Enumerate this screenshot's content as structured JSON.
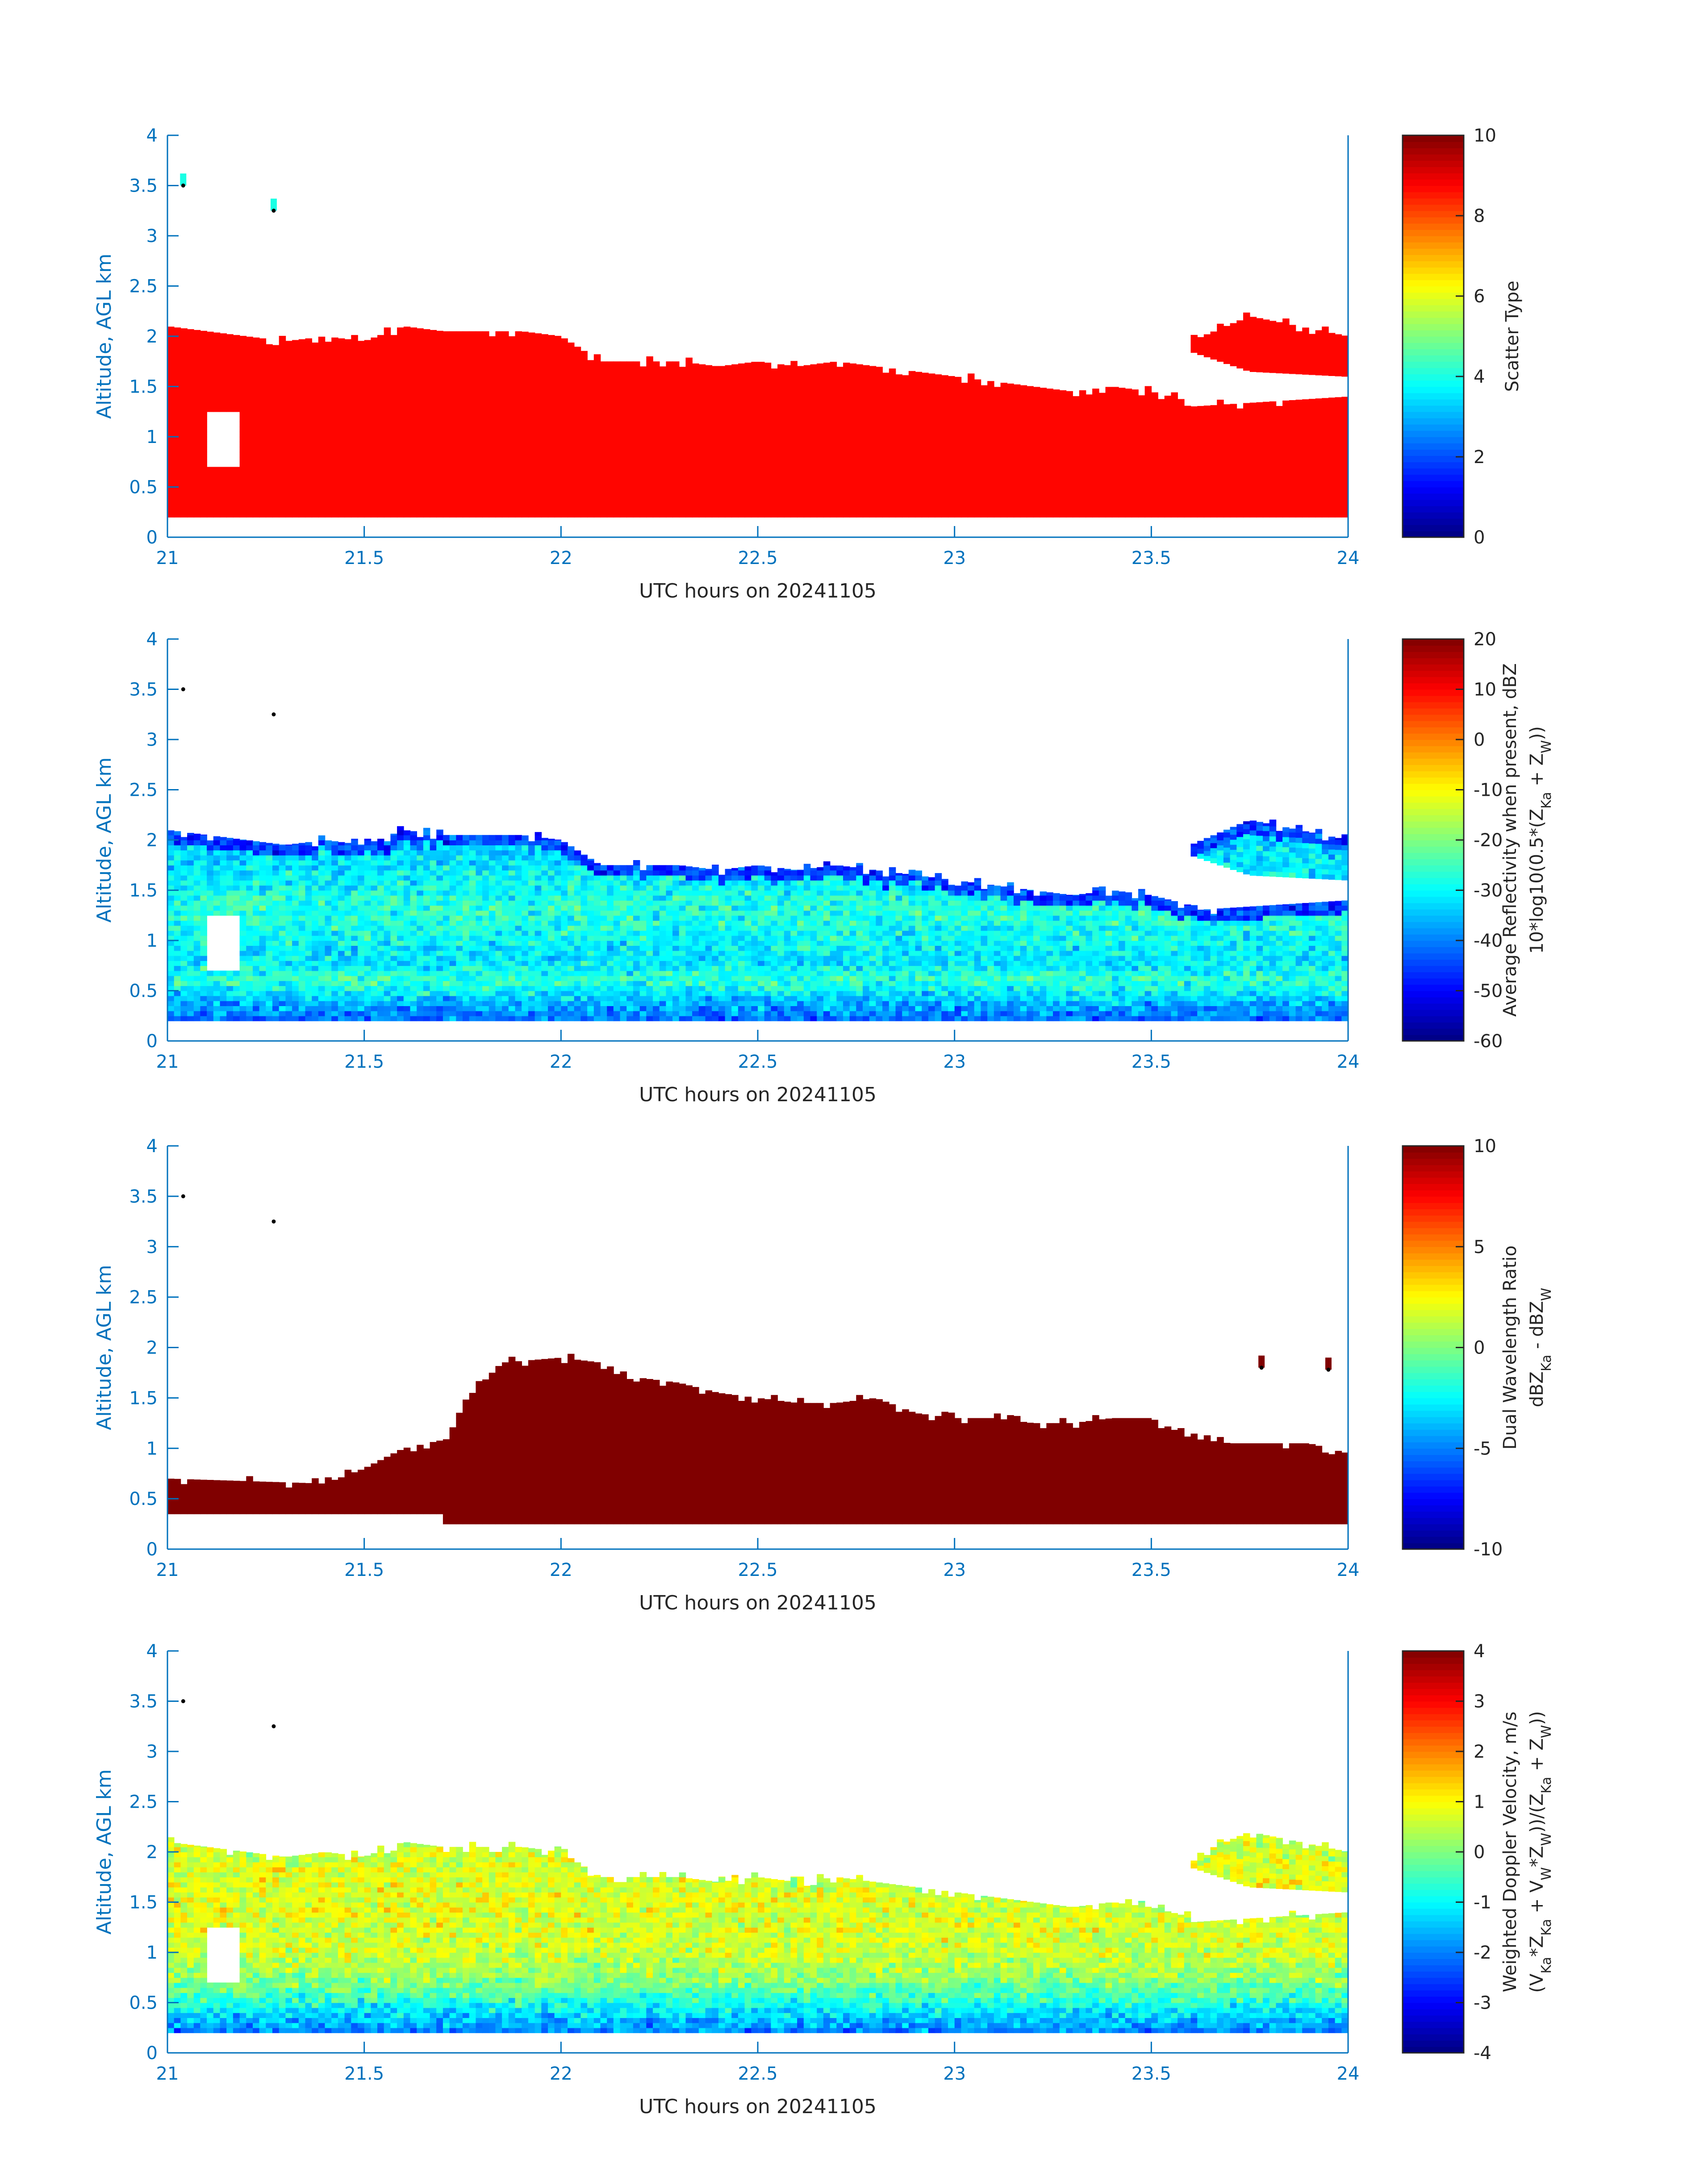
{
  "chart_data": [
    {
      "type": "heatmap",
      "ylabel": "Altitude, AGL km",
      "xlabel": "UTC hours on 20241105",
      "xlim": [
        21,
        24
      ],
      "ylim": [
        0,
        4
      ],
      "xticks": [
        "21",
        "21.5",
        "22",
        "22.5",
        "23",
        "23.5",
        "24"
      ],
      "yticks": [
        "0",
        "0.5",
        "1",
        "1.5",
        "2",
        "2.5",
        "3",
        "3.5",
        "4"
      ],
      "colorbar": {
        "label_lines": [
          [
            {
              "text": "Scatter Type"
            }
          ]
        ],
        "clim": [
          0,
          10
        ],
        "ticks": [
          "0",
          "2",
          "4",
          "6",
          "8",
          "10"
        ]
      },
      "noise": 0,
      "edge_value": 8.7,
      "value_profile": [
        [
          0,
          8.7
        ],
        [
          4,
          8.7
        ]
      ],
      "layers": [
        {
          "t": [
            21,
            21.1,
            21.2,
            21.3,
            21.4,
            21.5,
            21.6,
            21.7,
            21.8,
            21.9,
            22,
            22.1,
            22.2,
            22.3,
            22.4,
            22.5,
            22.6,
            22.7,
            22.8,
            22.9,
            23,
            23.1,
            23.2,
            23.3,
            23.4,
            23.5,
            23.6
          ],
          "top": [
            2.1,
            2.05,
            2.0,
            1.95,
            2.0,
            1.95,
            2.1,
            2.05,
            2.05,
            2.05,
            2.0,
            1.75,
            1.75,
            1.75,
            1.7,
            1.75,
            1.7,
            1.75,
            1.7,
            1.65,
            1.6,
            1.55,
            1.5,
            1.45,
            1.5,
            1.45,
            1.35
          ],
          "base": [
            0.2,
            0.2
          ]
        },
        {
          "t": [
            23.6,
            24
          ],
          "top": [
            1.3,
            1.4
          ],
          "base": [
            0.2,
            0.2
          ]
        },
        {
          "t": [
            23.6,
            23.75,
            24
          ],
          "top": [
            1.95,
            2.2,
            2.0
          ],
          "base": [
            1.85,
            1.65,
            1.6
          ]
        }
      ],
      "gaps": [
        {
          "t": [
            21.1,
            21.18
          ],
          "z": [
            0.7,
            1.25
          ]
        }
      ],
      "points": [
        {
          "t": 21.04,
          "z": 3.5,
          "value": 4
        },
        {
          "t": 21.27,
          "z": 3.25,
          "value": 4
        }
      ]
    },
    {
      "type": "heatmap",
      "ylabel": "Altitude, AGL km",
      "xlabel": "UTC hours on 20241105",
      "xlim": [
        21,
        24
      ],
      "ylim": [
        0,
        4
      ],
      "xticks": [
        "21",
        "21.5",
        "22",
        "22.5",
        "23",
        "23.5",
        "24"
      ],
      "yticks": [
        "0",
        "0.5",
        "1",
        "1.5",
        "2",
        "2.5",
        "3",
        "3.5",
        "4"
      ],
      "colorbar": {
        "label_lines": [
          [
            {
              "text": "Average Reflectivity when present, dBZ"
            }
          ],
          [
            {
              "text": "10*log10(0.5*(Z"
            },
            {
              "text": "Ka",
              "sub": true
            },
            {
              "text": " + Z"
            },
            {
              "text": "W",
              "sub": true
            },
            {
              "text": "))"
            }
          ]
        ],
        "clim": [
          -60,
          20
        ],
        "ticks": [
          "-60",
          "-50",
          "-40",
          "-30",
          "-20",
          "-10",
          "0",
          "10",
          "20"
        ]
      },
      "noise": 5,
      "edge_value": -45,
      "value_profile": [
        [
          0.2,
          -42
        ],
        [
          0.4,
          -35
        ],
        [
          0.6,
          -26
        ],
        [
          0.8,
          -32
        ],
        [
          1.0,
          -30
        ],
        [
          1.3,
          -27
        ],
        [
          1.6,
          -30
        ],
        [
          2.2,
          -36
        ]
      ],
      "layers": "same-as-0",
      "gaps": [
        {
          "t": [
            21.1,
            21.18
          ],
          "z": [
            0.7,
            1.25
          ]
        }
      ],
      "points": [
        {
          "t": 21.04,
          "z": 3.5
        },
        {
          "t": 21.27,
          "z": 3.25
        }
      ]
    },
    {
      "type": "heatmap",
      "ylabel": "Altitude, AGL km",
      "xlabel": "UTC hours on 20241105",
      "xlim": [
        21,
        24
      ],
      "ylim": [
        0,
        4
      ],
      "xticks": [
        "21",
        "21.5",
        "22",
        "22.5",
        "23",
        "23.5",
        "24"
      ],
      "yticks": [
        "0",
        "0.5",
        "1",
        "1.5",
        "2",
        "2.5",
        "3",
        "3.5",
        "4"
      ],
      "colorbar": {
        "label_lines": [
          [
            {
              "text": "Dual Wavelength Ratio"
            }
          ],
          [
            {
              "text": "dBZ"
            },
            {
              "text": "Ka",
              "sub": true
            },
            {
              "text": " - dBZ"
            },
            {
              "text": "W",
              "sub": true
            }
          ]
        ],
        "clim": [
          -10,
          10
        ],
        "ticks": [
          "-10",
          "-5",
          "0",
          "5",
          "10"
        ]
      },
      "noise": 0,
      "edge_value": 10,
      "value_profile": [
        [
          0,
          10
        ],
        [
          4,
          10
        ]
      ],
      "layers": [
        {
          "t": [
            21,
            21.4,
            21.5,
            21.6,
            21.72,
            21.75,
            21.85,
            22,
            22.1,
            22.2,
            22.3,
            22.4,
            22.5,
            22.6,
            22.7,
            22.8,
            22.9,
            23,
            23.1,
            23.2,
            23.3,
            23.4,
            23.5,
            23.6,
            23.7,
            23.8,
            23.9,
            24
          ],
          "top": [
            0.7,
            0.65,
            0.8,
            1.0,
            1.1,
            1.45,
            1.85,
            1.9,
            1.85,
            1.7,
            1.65,
            1.55,
            1.5,
            1.45,
            1.45,
            1.5,
            1.35,
            1.3,
            1.3,
            1.25,
            1.25,
            1.3,
            1.3,
            1.1,
            1.05,
            1.05,
            1.05,
            0.95
          ],
          "base": [
            0.25,
            0.25
          ]
        }
      ],
      "gaps": [
        {
          "t": [
            21.0,
            21.7
          ],
          "z": [
            0.25,
            0.33
          ]
        }
      ],
      "points": [
        {
          "t": 21.04,
          "z": 3.5
        },
        {
          "t": 21.27,
          "z": 3.25
        },
        {
          "t": 23.78,
          "z": 1.8,
          "value": 10
        },
        {
          "t": 23.95,
          "z": 1.78,
          "value": 10
        }
      ]
    },
    {
      "type": "heatmap",
      "ylabel": "Altitude, AGL km",
      "xlabel": "UTC hours on 20241105",
      "xlim": [
        21,
        24
      ],
      "ylim": [
        0,
        4
      ],
      "xticks": [
        "21",
        "21.5",
        "22",
        "22.5",
        "23",
        "23.5",
        "24"
      ],
      "yticks": [
        "0",
        "0.5",
        "1",
        "1.5",
        "2",
        "2.5",
        "3",
        "3.5",
        "4"
      ],
      "colorbar": {
        "label_lines": [
          [
            {
              "text": "Weighted Doppler Velocity, m/s"
            }
          ],
          [
            {
              "text": "(V"
            },
            {
              "text": "Ka",
              "sub": true
            },
            {
              "text": "*Z"
            },
            {
              "text": "Ka",
              "sub": true
            },
            {
              "text": " + V"
            },
            {
              "text": "W",
              "sub": true
            },
            {
              "text": "*Z"
            },
            {
              "text": "W",
              "sub": true
            },
            {
              "text": "))/(Z"
            },
            {
              "text": "Ka",
              "sub": true
            },
            {
              "text": " + Z"
            },
            {
              "text": "W",
              "sub": true
            },
            {
              "text": "))"
            }
          ]
        ],
        "clim": [
          -4,
          4
        ],
        "ticks": [
          "-4",
          "-3",
          "-2",
          "-1",
          "0",
          "1",
          "2",
          "3",
          "4"
        ]
      },
      "noise": 0.5,
      "edge_value": 0.6,
      "value_profile": [
        [
          0.2,
          -2.0
        ],
        [
          0.35,
          -1.4
        ],
        [
          0.5,
          -0.8
        ],
        [
          0.7,
          0.0
        ],
        [
          1.0,
          0.6
        ],
        [
          1.5,
          0.8
        ],
        [
          2.2,
          0.7
        ]
      ],
      "layers": "same-as-0",
      "gaps": [
        {
          "t": [
            21.1,
            21.18
          ],
          "z": [
            0.7,
            1.25
          ]
        }
      ],
      "points": [
        {
          "t": 21.04,
          "z": 3.5
        },
        {
          "t": 21.27,
          "z": 3.25
        }
      ]
    }
  ]
}
